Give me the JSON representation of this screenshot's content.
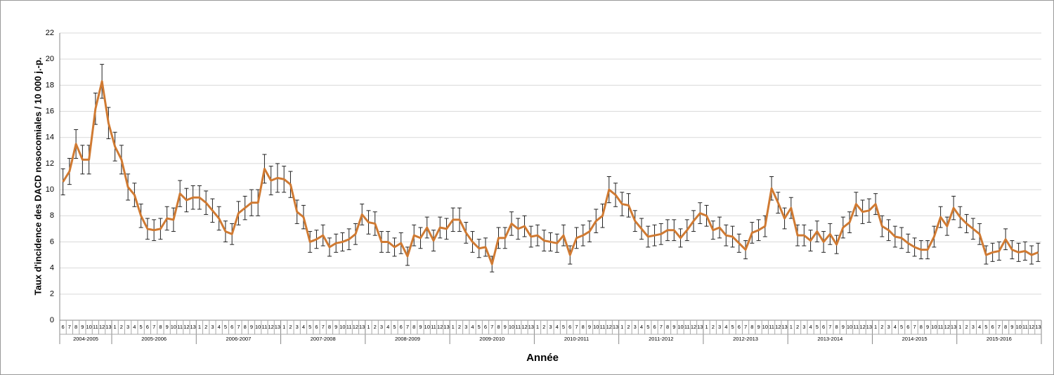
{
  "chart_data": {
    "type": "line",
    "ylabel": "Taux d'incidence des DACD nosocomiales / 10 000 j.-p.",
    "xlabel": "Année",
    "groups": [
      {
        "name": "2004-2005",
        "periods": [
          6,
          7,
          8,
          9,
          10,
          11,
          12,
          13
        ]
      },
      {
        "name": "2005-2006",
        "periods": [
          1,
          2,
          3,
          4,
          5,
          6,
          7,
          8,
          9,
          10,
          11,
          12,
          13
        ]
      },
      {
        "name": "2006-2007",
        "periods": [
          1,
          2,
          3,
          4,
          5,
          6,
          7,
          8,
          9,
          10,
          11,
          12,
          13
        ]
      },
      {
        "name": "2007-2008",
        "periods": [
          1,
          2,
          3,
          4,
          5,
          6,
          7,
          8,
          9,
          10,
          11,
          12,
          13
        ]
      },
      {
        "name": "2008-2009",
        "periods": [
          1,
          2,
          3,
          4,
          5,
          6,
          7,
          8,
          9,
          10,
          11,
          12,
          13
        ]
      },
      {
        "name": "2009-2010",
        "periods": [
          1,
          2,
          3,
          4,
          5,
          6,
          7,
          8,
          9,
          10,
          11,
          12,
          13
        ]
      },
      {
        "name": "2010-2011",
        "periods": [
          1,
          2,
          3,
          4,
          5,
          6,
          7,
          8,
          9,
          10,
          11,
          12,
          13
        ]
      },
      {
        "name": "2011-2012",
        "periods": [
          1,
          2,
          3,
          4,
          5,
          6,
          7,
          8,
          9,
          10,
          11,
          12,
          13
        ]
      },
      {
        "name": "2012-2013",
        "periods": [
          1,
          2,
          3,
          4,
          5,
          6,
          7,
          8,
          9,
          10,
          11,
          12,
          13
        ]
      },
      {
        "name": "2013-2014",
        "periods": [
          1,
          2,
          3,
          4,
          5,
          6,
          7,
          8,
          9,
          10,
          11,
          12,
          13
        ]
      },
      {
        "name": "2014-2015",
        "periods": [
          1,
          2,
          3,
          4,
          5,
          6,
          7,
          8,
          9,
          10,
          11,
          12,
          13
        ]
      },
      {
        "name": "2015-2016",
        "periods": [
          1,
          2,
          3,
          4,
          5,
          6,
          7,
          8,
          9,
          10,
          11,
          12,
          13
        ]
      }
    ],
    "values": [
      10.6,
      11.4,
      13.5,
      12.3,
      12.3,
      16.2,
      18.3,
      15.1,
      13.3,
      12.3,
      10.2,
      9.6,
      8.0,
      7.0,
      6.9,
      7.0,
      7.8,
      7.7,
      9.7,
      9.2,
      9.4,
      9.4,
      9.0,
      8.4,
      7.8,
      6.8,
      6.6,
      8.2,
      8.6,
      9.0,
      9.0,
      11.6,
      10.7,
      10.9,
      10.8,
      10.4,
      8.3,
      7.9,
      6.0,
      6.2,
      6.5,
      5.6,
      5.9,
      6.0,
      6.2,
      6.6,
      8.1,
      7.5,
      7.4,
      6.0,
      6.0,
      5.6,
      5.9,
      4.9,
      6.5,
      6.3,
      7.1,
      6.1,
      7.1,
      7.0,
      7.7,
      7.7,
      6.7,
      6.0,
      5.5,
      5.6,
      4.3,
      6.3,
      6.3,
      7.4,
      7.0,
      7.2,
      6.4,
      6.5,
      6.1,
      6.0,
      5.9,
      6.5,
      5.0,
      6.3,
      6.5,
      6.8,
      7.6,
      8.0,
      10.0,
      9.6,
      8.9,
      8.8,
      7.6,
      7.0,
      6.4,
      6.5,
      6.6,
      6.9,
      6.9,
      6.3,
      6.9,
      7.6,
      8.2,
      8.0,
      6.9,
      7.1,
      6.5,
      6.4,
      5.9,
      5.4,
      6.7,
      6.9,
      7.2,
      10.1,
      9.0,
      7.8,
      8.6,
      6.5,
      6.5,
      6.1,
      6.8,
      6.0,
      6.6,
      5.8,
      7.1,
      7.5,
      8.9,
      8.3,
      8.4,
      8.9,
      7.2,
      6.9,
      6.4,
      6.3,
      5.9,
      5.6,
      5.4,
      5.4,
      6.4,
      7.9,
      7.2,
      8.6,
      7.9,
      7.4,
      7.0,
      6.6,
      5.0,
      5.2,
      5.3,
      6.2,
      5.4,
      5.2,
      5.3,
      5.0,
      5.2
    ],
    "errors": [
      1.0,
      1.0,
      1.1,
      1.1,
      1.1,
      1.2,
      1.3,
      1.2,
      1.1,
      1.1,
      1.0,
      0.9,
      0.9,
      0.8,
      0.8,
      0.8,
      0.9,
      0.9,
      1.0,
      0.9,
      0.9,
      0.9,
      0.9,
      0.9,
      0.9,
      0.8,
      0.8,
      0.9,
      0.9,
      1.0,
      1.0,
      1.1,
      1.1,
      1.1,
      1.0,
      1.0,
      0.9,
      0.9,
      0.8,
      0.7,
      0.8,
      0.7,
      0.7,
      0.7,
      0.8,
      0.8,
      0.8,
      0.9,
      0.9,
      0.8,
      0.8,
      0.7,
      0.8,
      0.7,
      0.8,
      0.8,
      0.8,
      0.8,
      0.8,
      0.8,
      0.9,
      0.9,
      0.8,
      0.8,
      0.7,
      0.7,
      0.6,
      0.8,
      0.8,
      0.9,
      0.8,
      0.8,
      0.8,
      0.8,
      0.8,
      0.7,
      0.7,
      0.8,
      0.7,
      0.8,
      0.8,
      0.8,
      0.9,
      0.9,
      1.0,
      0.9,
      0.9,
      0.9,
      0.8,
      0.8,
      0.8,
      0.8,
      0.8,
      0.8,
      0.8,
      0.7,
      0.8,
      0.8,
      0.8,
      0.8,
      0.7,
      0.8,
      0.8,
      0.8,
      0.7,
      0.7,
      0.8,
      0.8,
      0.8,
      0.9,
      0.8,
      0.8,
      0.8,
      0.8,
      0.8,
      0.8,
      0.8,
      0.8,
      0.8,
      0.7,
      0.8,
      0.8,
      0.9,
      0.9,
      0.9,
      0.8,
      0.8,
      0.8,
      0.8,
      0.8,
      0.7,
      0.7,
      0.7,
      0.7,
      0.8,
      0.8,
      0.7,
      0.9,
      0.8,
      0.7,
      0.8,
      0.8,
      0.7,
      0.7,
      0.7,
      0.8,
      0.7,
      0.7,
      0.7,
      0.7,
      0.7
    ],
    "color": "#d07a32",
    "ylim": [
      0,
      22
    ],
    "yticks": [
      0,
      2,
      4,
      6,
      8,
      10,
      12,
      14,
      16,
      18,
      20,
      22
    ],
    "grid": true
  }
}
